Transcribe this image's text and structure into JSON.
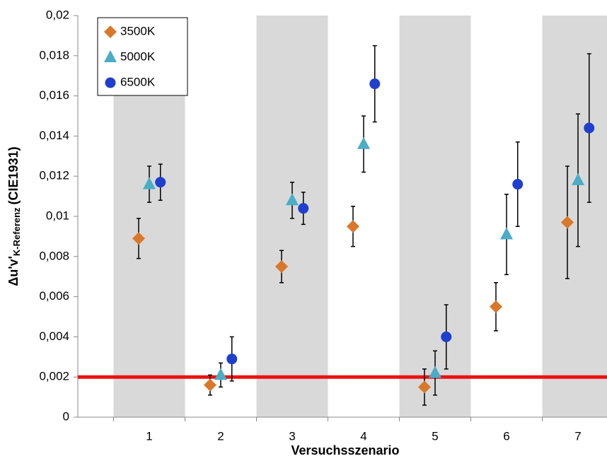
{
  "chart_data": {
    "type": "scatter",
    "xlabel": "Versuchsszenario",
    "ylabel": "Δu'v'",
    "ylabel_subscript": "K-Referenz",
    "ylabel_suffix": "(CIE1931)",
    "categories": [
      "1",
      "2",
      "3",
      "4",
      "5",
      "6",
      "7"
    ],
    "ylim": [
      0,
      0.02
    ],
    "yticks": [
      0,
      {
        "value": 0.002,
        "label": "0,002"
      },
      {
        "value": 0.004,
        "label": "0,004"
      },
      {
        "value": 0.006,
        "label": "0,006"
      },
      {
        "value": 0.008,
        "label": "0,008"
      },
      {
        "value": 0.01,
        "label": "0,01"
      },
      {
        "value": 0.012,
        "label": "0,012"
      },
      {
        "value": 0.014,
        "label": "0,014"
      },
      {
        "value": 0.016,
        "label": "0,016"
      },
      {
        "value": 0.018,
        "label": "0,018"
      },
      {
        "value": 0.02,
        "label": "0,02"
      }
    ],
    "threshold": 0.002,
    "threshold_color": "#ee1111",
    "band_color": "#d9d9d9",
    "legend": "top-left",
    "series": [
      {
        "name": "3500K",
        "color": "#d9782a",
        "marker": "diamond",
        "values": [
          0.0089,
          0.0016,
          0.0075,
          0.0095,
          0.0015,
          0.0055,
          0.0097
        ],
        "errors": [
          0.001,
          0.0005,
          0.0008,
          0.001,
          0.0009,
          0.0012,
          0.0028
        ]
      },
      {
        "name": "5000K",
        "color": "#4bacc6",
        "marker": "triangle",
        "values": [
          0.0116,
          0.0021,
          0.0108,
          0.0136,
          0.0022,
          0.0091,
          0.0118
        ],
        "errors": [
          0.0009,
          0.0006,
          0.0009,
          0.0014,
          0.0011,
          0.002,
          0.0033
        ]
      },
      {
        "name": "6500K",
        "color": "#1f3fcf",
        "marker": "circle",
        "values": [
          0.0117,
          0.0029,
          0.0104,
          0.0166,
          0.004,
          0.0116,
          0.0144
        ],
        "errors": [
          0.0009,
          0.0011,
          0.0008,
          0.0019,
          0.0016,
          0.0021,
          0.0037
        ]
      }
    ]
  }
}
